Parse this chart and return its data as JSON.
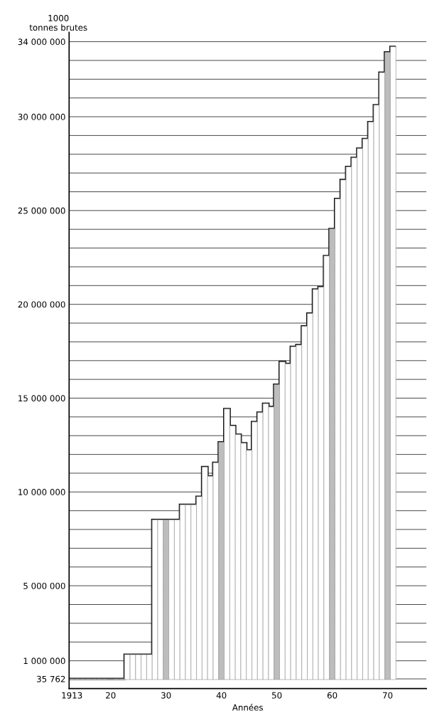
{
  "chart_data": {
    "type": "bar",
    "xlabel": "Années",
    "ylabel": "1000\ntonnes brutes",
    "x": [
      1913,
      1914,
      1915,
      1916,
      1917,
      1918,
      1919,
      1920,
      1921,
      1922,
      1923,
      1924,
      1925,
      1926,
      1927,
      1928,
      1929,
      1930,
      1931,
      1932,
      1933,
      1934,
      1935,
      1936,
      1937,
      1938,
      1939,
      1940,
      1941,
      1942,
      1943,
      1944,
      1945,
      1946,
      1947,
      1948,
      1949,
      1950,
      1951,
      1952,
      1953,
      1954,
      1955,
      1956,
      1957,
      1958,
      1959,
      1960,
      1961,
      1962,
      1963,
      1964,
      1965,
      1966,
      1967,
      1968,
      1969,
      1970,
      1971
    ],
    "series": [
      {
        "color": "#111111",
        "values": [
          35762,
          35762,
          35762,
          35762,
          35762,
          35762,
          35762,
          35762,
          35762,
          35762,
          1330000,
          1330000,
          1330000,
          1330000,
          1330000,
          8510000,
          8510000,
          8510000,
          8510000,
          8510000,
          9320000,
          9320000,
          9320000,
          9750000,
          11330000,
          10840000,
          11560000,
          12650000,
          14420000,
          13520000,
          13060000,
          12600000,
          12220000,
          13730000,
          14230000,
          14710000,
          14530000,
          15720000,
          16930000,
          16830000,
          17740000,
          17830000,
          18830000,
          19510000,
          20790000,
          20920000,
          22580000,
          24020000,
          25620000,
          26630000,
          27330000,
          27810000,
          28300000,
          28820000,
          29720000,
          30620000,
          32350000,
          33430000,
          33730000
        ],
        "colors": [
          "#ffffff",
          "#ffffff",
          "#ffffff",
          "#ffffff",
          "#ffffff",
          "#ffffff",
          "#ffffff",
          "#bdbdbd",
          "#ffffff",
          "#ffffff",
          "#ffffff",
          "#ffffff",
          "#ffffff",
          "#ffffff",
          "#ffffff",
          "#ffffff",
          "#ffffff",
          "#bdbdbd",
          "#ffffff",
          "#ffffff",
          "#ffffff",
          "#ffffff",
          "#ffffff",
          "#ffffff",
          "#ffffff",
          "#ffffff",
          "#ffffff",
          "#bdbdbd",
          "#ffffff",
          "#ffffff",
          "#ffffff",
          "#ffffff",
          "#ffffff",
          "#ffffff",
          "#ffffff",
          "#ffffff",
          "#ffffff",
          "#bdbdbd",
          "#ffffff",
          "#ffffff",
          "#ffffff",
          "#ffffff",
          "#ffffff",
          "#ffffff",
          "#ffffff",
          "#ffffff",
          "#ffffff",
          "#bdbdbd",
          "#ffffff",
          "#ffffff",
          "#ffffff",
          "#ffffff",
          "#ffffff",
          "#ffffff",
          "#ffffff",
          "#ffffff",
          "#ffffff",
          "#bdbdbd",
          "#ffffff"
        ]
      }
    ],
    "xlim": [
      1912.5,
      1977
    ],
    "xticks": [
      1913,
      {
        "value": 1920,
        "label": "20"
      },
      {
        "value": 1930,
        "label": "30"
      },
      {
        "value": 1940,
        "label": "40"
      },
      {
        "value": 1950,
        "label": "50"
      },
      {
        "value": 1960,
        "label": "60"
      },
      {
        "value": 1970,
        "label": "70"
      }
    ],
    "ylim": [
      -480000,
      34500000
    ],
    "yticks": [
      {
        "value": 35762,
        "label": "35 762"
      },
      {
        "value": 1000000,
        "label": "1 000 000"
      },
      {
        "value": 2000000,
        "label": null
      },
      {
        "value": 3000000,
        "label": null
      },
      {
        "value": 4000000,
        "label": null
      },
      {
        "value": 5000000,
        "label": "5 000 000"
      },
      {
        "value": 6000000,
        "label": null
      },
      {
        "value": 7000000,
        "label": null
      },
      {
        "value": 8000000,
        "label": null
      },
      {
        "value": 9000000,
        "label": null
      },
      {
        "value": 10000000,
        "label": "10 000 000"
      },
      {
        "value": 11000000,
        "label": null
      },
      {
        "value": 12000000,
        "label": null
      },
      {
        "value": 13000000,
        "label": null
      },
      {
        "value": 14000000,
        "label": null
      },
      {
        "value": 15000000,
        "label": "15 000 000"
      },
      {
        "value": 16000000,
        "label": null
      },
      {
        "value": 17000000,
        "label": null
      },
      {
        "value": 18000000,
        "label": null
      },
      {
        "value": 19000000,
        "label": null
      },
      {
        "value": 20000000,
        "label": "20 000 000"
      },
      {
        "value": 21000000,
        "label": null
      },
      {
        "value": 22000000,
        "label": null
      },
      {
        "value": 23000000,
        "label": null
      },
      {
        "value": 24000000,
        "label": null
      },
      {
        "value": 25000000,
        "label": "25 000 000"
      },
      {
        "value": 26000000,
        "label": null
      },
      {
        "value": 27000000,
        "label": null
      },
      {
        "value": 28000000,
        "label": null
      },
      {
        "value": 29000000,
        "label": null
      },
      {
        "value": 30000000,
        "label": "30 000 000"
      },
      {
        "value": 31000000,
        "label": null
      },
      {
        "value": 32000000,
        "label": null
      },
      {
        "value": 33000000,
        "label": null
      },
      {
        "value": 34000000,
        "label": "34 000 000"
      }
    ],
    "grid": "y",
    "legend": false
  }
}
